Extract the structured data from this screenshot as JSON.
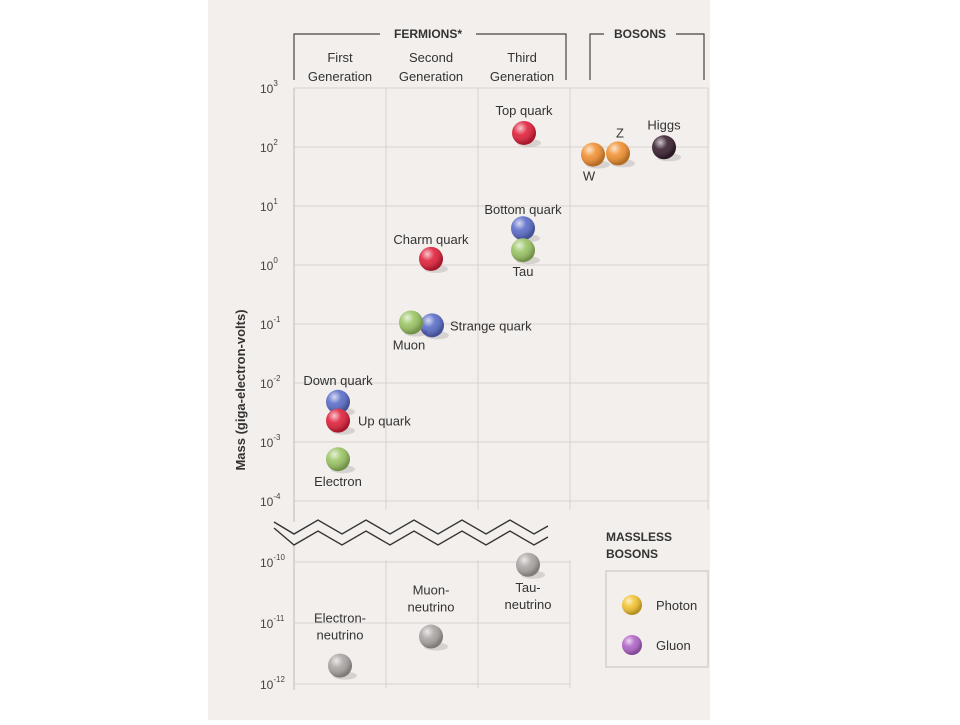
{
  "chart_data": {
    "type": "scatter",
    "ylabel": "Mass (giga-electron-volts)",
    "scale": "log",
    "y_ticks_upper": [
      {
        "exp": 3,
        "base": "10",
        "sup": "3"
      },
      {
        "exp": 2,
        "base": "10",
        "sup": "2"
      },
      {
        "exp": 1,
        "base": "10",
        "sup": "1"
      },
      {
        "exp": 0,
        "base": "10",
        "sup": "0"
      },
      {
        "exp": -1,
        "base": "10",
        "sup": "-1"
      },
      {
        "exp": -2,
        "base": "10",
        "sup": "-2"
      },
      {
        "exp": -3,
        "base": "10",
        "sup": "-3"
      },
      {
        "exp": -4,
        "base": "10",
        "sup": "-4"
      }
    ],
    "y_ticks_lower": [
      {
        "exp": -10,
        "base": "10",
        "sup": "-10"
      },
      {
        "exp": -11,
        "base": "10",
        "sup": "-11"
      },
      {
        "exp": -12,
        "base": "10",
        "sup": "-12"
      }
    ],
    "groups": {
      "fermions": "FERMIONS*",
      "bosons": "BOSONS",
      "columns": [
        {
          "line1": "First",
          "line2": "Generation"
        },
        {
          "line1": "Second",
          "line2": "Generation"
        },
        {
          "line1": "Third",
          "line2": "Generation"
        }
      ]
    },
    "particles": [
      {
        "label": "Top quark",
        "column": 3,
        "mass_gev": 173,
        "color": "#e0203a"
      },
      {
        "label": "Bottom quark",
        "column": 3,
        "mass_gev": 4.2,
        "color": "#5a6cc8"
      },
      {
        "label": "Tau",
        "column": 3,
        "mass_gev": 1.78,
        "color": "#9ac463"
      },
      {
        "label": "Charm quark",
        "column": 2,
        "mass_gev": 1.27,
        "color": "#e0203a"
      },
      {
        "label": "Strange quark",
        "column": 2,
        "mass_gev": 0.095,
        "color": "#5a6cc8"
      },
      {
        "label": "Muon",
        "column": 2,
        "mass_gev": 0.106,
        "color": "#9ac463"
      },
      {
        "label": "Down quark",
        "column": 1,
        "mass_gev": 0.0048,
        "color": "#5a6cc8"
      },
      {
        "label": "Up quark",
        "column": 1,
        "mass_gev": 0.0023,
        "color": "#e0203a"
      },
      {
        "label": "Electron",
        "column": 1,
        "mass_gev": 0.000511,
        "color": "#9ac463"
      },
      {
        "label": "W",
        "column": 4,
        "mass_gev": 80.4,
        "color": "#f09030"
      },
      {
        "label": "Z",
        "column": 4,
        "mass_gev": 91.2,
        "color": "#f09030"
      },
      {
        "label": "Higgs",
        "column": 4,
        "mass_gev": 125,
        "color": "#3a2030"
      },
      {
        "label": "Electron-\nneutrino",
        "column": 1,
        "mass_gev": 2e-12,
        "color": "#a9a5a3"
      },
      {
        "label": "Muon-\nneutrino",
        "column": 2,
        "mass_gev": 6e-12,
        "color": "#a9a5a3"
      },
      {
        "label": "Tau-\nneutrino",
        "column": 3,
        "mass_gev": 9e-11,
        "color": "#a9a5a3"
      }
    ],
    "massless": {
      "title_line1": "MASSLESS",
      "title_line2": "BOSONS",
      "items": [
        {
          "label": "Photon",
          "color": "#f2c230"
        },
        {
          "label": "Gluon",
          "color": "#b063c8"
        }
      ]
    }
  }
}
